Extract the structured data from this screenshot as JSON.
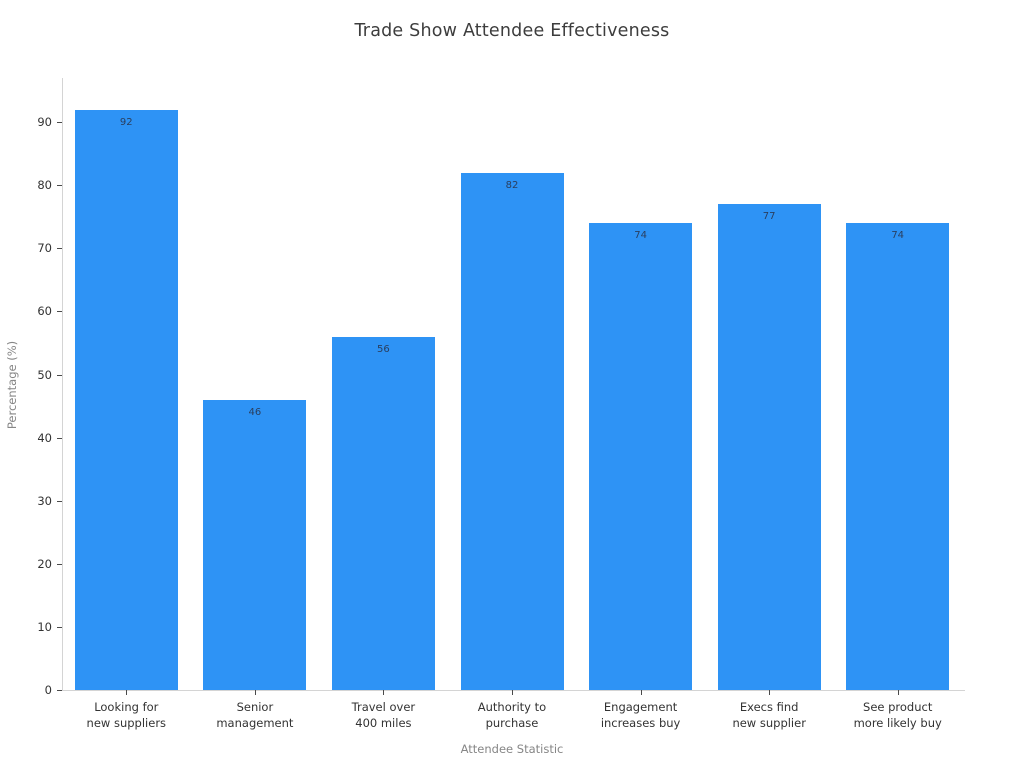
{
  "title": "Trade Show Attendee Effectiveness",
  "chart_data": {
    "type": "bar",
    "title": "Trade Show Attendee Effectiveness",
    "categories": [
      "Looking for new suppliers",
      "Senior management",
      "Travel over 400 miles",
      "Authority to purchase",
      "Engagement increases buy",
      "Execs find new supplier",
      "See product more likely buy"
    ],
    "category_lines": [
      [
        "Looking for",
        "new suppliers"
      ],
      [
        "Senior",
        "management"
      ],
      [
        "Travel over",
        "400 miles"
      ],
      [
        "Authority to",
        "purchase"
      ],
      [
        "Engagement",
        "increases buy"
      ],
      [
        "Execs find",
        "new supplier"
      ],
      [
        "See product",
        "more likely buy"
      ]
    ],
    "values": [
      92,
      46,
      56,
      82,
      74,
      77,
      74
    ],
    "value_labels": [
      "92",
      "46",
      "56",
      "82",
      "74",
      "77",
      "74"
    ],
    "xlabel": "Attendee Statistic",
    "ylabel": "Percentage (%)",
    "ylim": [
      0,
      97
    ],
    "yticks": [
      0,
      10,
      20,
      30,
      40,
      50,
      60,
      70,
      80,
      90
    ],
    "grid": false,
    "legend": null,
    "colors": {
      "bar": "#2E93F5",
      "value_label": "#2A3F5F",
      "tick_label": "#333333",
      "axis_title": "#868686",
      "spine": "#D4D4D4",
      "tick_mark": "#4A4A4A",
      "background": "#FFFFFF"
    }
  }
}
